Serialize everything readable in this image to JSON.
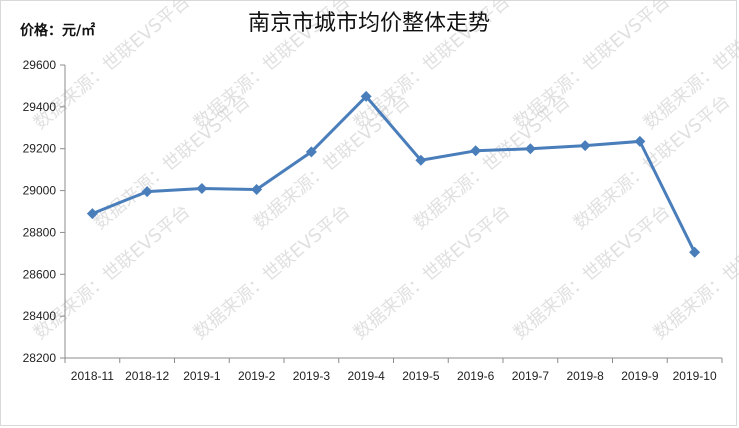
{
  "chart_data": {
    "type": "line",
    "title": "南京市城市均价整体走势",
    "ylabel": "价格：元/㎡",
    "xlabel": "",
    "categories": [
      "2018-11",
      "2018-12",
      "2019-1",
      "2019-2",
      "2019-3",
      "2019-4",
      "2019-5",
      "2019-6",
      "2019-7",
      "2019-8",
      "2019-9",
      "2019-10"
    ],
    "series": [
      {
        "values": [
          28890,
          28995,
          29010,
          29005,
          29185,
          29450,
          29145,
          29190,
          29200,
          29215,
          29235,
          28705
        ]
      }
    ],
    "ylim": [
      28200,
      29600
    ],
    "yticks": [
      28200,
      28400,
      28600,
      28800,
      29000,
      29200,
      29400,
      29600
    ],
    "grid": false,
    "legend": "none",
    "colors": {
      "line": "#4a7ebb",
      "marker": "#4a7ebb",
      "axis": "#8c8c8c"
    }
  },
  "watermark": "数据来源：世联EVS平台"
}
